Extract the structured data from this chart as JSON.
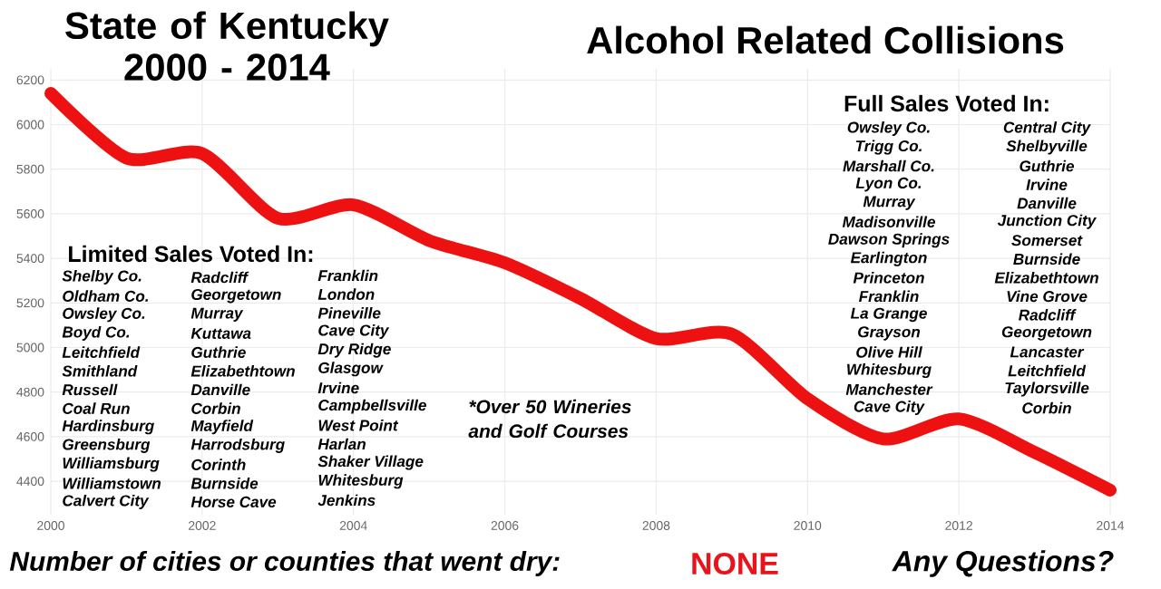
{
  "chart_data": {
    "type": "line",
    "title": "State of Kentucky 2000 - 2014",
    "subtitle": "Alcohol Related Collisions",
    "x": [
      2000,
      2001,
      2002,
      2003,
      2004,
      2005,
      2006,
      2007,
      2008,
      2009,
      2010,
      2011,
      2012,
      2013,
      2014
    ],
    "series": [
      {
        "color": "#ee1111",
        "values": [
          6140,
          5850,
          5870,
          5580,
          5640,
          5480,
          5380,
          5220,
          5040,
          5060,
          4770,
          4590,
          4680,
          4530,
          4360
        ]
      }
    ],
    "xlim": [
      2000,
      2014
    ],
    "ylim": [
      4250,
      6250
    ],
    "xticks": [
      2000,
      2002,
      2004,
      2006,
      2008,
      2010,
      2012,
      2014
    ],
    "yticks": [
      4400,
      4600,
      4800,
      5000,
      5200,
      5400,
      5600,
      5800,
      6000,
      6200
    ],
    "grid": true,
    "marker": "none",
    "annotations": [
      "Limited Sales Voted In:",
      "Shelby Co.",
      "Oldham Co.",
      "Owsley Co.",
      "Boyd Co.",
      "Leitchfield",
      "Smithland",
      "Russell",
      "Coal Run",
      "Hardinsburg",
      "Greensburg",
      "Williamsburg",
      "Williamstown",
      "Calvert City",
      "Radcliff",
      "Georgetown",
      "Murray",
      "Kuttawa",
      "Guthrie",
      "Elizabethtown",
      "Danville",
      "Corbin",
      "Mayfield",
      "Harrodsburg",
      "Corinth",
      "Burnside",
      "Horse Cave",
      "Franklin",
      "London",
      "Pineville",
      "Cave City",
      "Dry Ridge",
      "Glasgow",
      "Irvine",
      "Campbellsville",
      "West Point",
      "Harlan",
      "Shaker Village",
      "Whitesburg",
      "Jenkins",
      "*Over 50 Wineries and Golf Courses",
      "Full Sales Voted In:",
      "Owsley Co.",
      "Trigg Co.",
      "Marshall Co.",
      "Lyon Co.",
      "Murray",
      "Madisonville",
      "Dawson Springs",
      "Earlington",
      "Princeton",
      "Franklin",
      "La Grange",
      "Grayson",
      "Olive Hill",
      "Whitesburg",
      "Manchester",
      "Cave City",
      "Central City",
      "Shelbyville",
      "Guthrie",
      "Irvine",
      "Danville",
      "Junction City",
      "Somerset",
      "Burnside",
      "Elizabethtown",
      "Vine Grove",
      "Radcliff",
      "Georgetown",
      "Lancaster",
      "Leitchfield",
      "Taylorsville",
      "Corbin",
      "Number of cities or counties that went dry:",
      "NONE",
      "Any Questions?"
    ]
  }
}
